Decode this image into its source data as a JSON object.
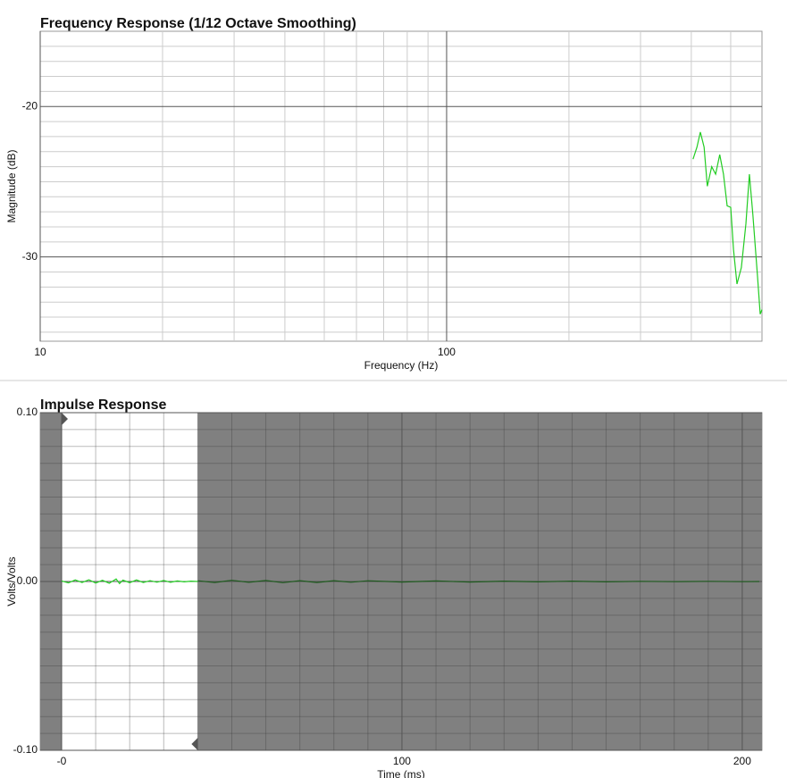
{
  "chart_data": [
    {
      "type": "line",
      "title": "Frequency Response (1/12 Octave Smoothing)",
      "x_label": "Frequency (Hz)",
      "y_label": "Magnitude (dB)",
      "x_scale": "log",
      "xlim": [
        10,
        597
      ],
      "ylim": [
        -35.6,
        -15
      ],
      "xticks": [
        10,
        100
      ],
      "minor_xticks": [
        20,
        30,
        40,
        50,
        60,
        70,
        80,
        90,
        200,
        300,
        400,
        500
      ],
      "yticks": [
        -20,
        -30
      ],
      "minor_yticks": [
        -16,
        -17,
        -18,
        -19,
        -21,
        -22,
        -23,
        -24,
        -25,
        -26,
        -27,
        -28,
        -29,
        -31,
        -32,
        -33,
        -34,
        -35
      ],
      "grid": true,
      "series": [
        {
          "color": "#22cc22",
          "x": [
            404,
            413,
            421,
            430,
            438,
            449,
            459,
            470,
            480,
            490,
            500,
            508,
            518,
            531,
            545,
            556,
            567,
            582,
            591,
            597
          ],
          "values": [
            -23.5,
            -22.7,
            -21.7,
            -22.7,
            -25.3,
            -24.0,
            -24.5,
            -23.2,
            -24.5,
            -26.6,
            -26.7,
            -29.5,
            -31.8,
            -30.7,
            -27.8,
            -24.5,
            -27.2,
            -31.3,
            -33.8,
            -33.5
          ]
        }
      ]
    },
    {
      "type": "line",
      "title": "Impulse Response",
      "x_label": "Time (ms)",
      "y_label": "Volts/Volts",
      "xlim": [
        -6.3,
        205.8
      ],
      "ylim": [
        -0.1,
        0.1
      ],
      "xticks": [
        {
          "value": 0,
          "label": "-0"
        },
        100,
        200
      ],
      "minor_xticks": [
        10,
        20,
        30,
        40,
        50,
        60,
        70,
        80,
        90,
        110,
        120,
        130,
        140,
        150,
        160,
        170,
        180,
        190
      ],
      "yticks": [
        {
          "value": 0.1,
          "label": "0.10"
        },
        {
          "value": 0,
          "label": "0.00"
        },
        {
          "value": -0.1,
          "label": "-0.10"
        }
      ],
      "minor_yticks": [
        0.09,
        0.08,
        0.07,
        0.06,
        0.05,
        0.04,
        0.03,
        0.02,
        0.01,
        -0.01,
        -0.02,
        -0.03,
        -0.04,
        -0.05,
        -0.06,
        -0.07,
        -0.08,
        -0.09
      ],
      "grid": true,
      "window_start": 0,
      "window_end": 40,
      "outside_window_color": "#808080",
      "series": [
        {
          "color": "#22cc22",
          "x": [
            0,
            2,
            4,
            6,
            8,
            10,
            12,
            14,
            16,
            17,
            18,
            20,
            22,
            24,
            26,
            28,
            30,
            32,
            34,
            36,
            38,
            40
          ],
          "values": [
            0.0003,
            -0.0008,
            0.0009,
            -0.0006,
            0.001,
            -0.0009,
            0.0007,
            -0.001,
            0.0015,
            -0.0012,
            0.0008,
            -0.0007,
            0.0009,
            -0.0006,
            0.0005,
            -0.0004,
            0.0006,
            -0.0005,
            0.0003,
            -0.0002,
            0.0002,
            0.0
          ]
        },
        {
          "color": "#1e5a1e",
          "x": [
            40,
            45,
            50,
            55,
            60,
            65,
            70,
            75,
            80,
            85,
            90,
            100,
            110,
            120,
            130,
            140,
            150,
            160,
            170,
            180,
            190,
            200,
            205
          ],
          "values": [
            0.0004,
            -0.0006,
            0.0007,
            -0.0005,
            0.0006,
            -0.0007,
            0.0005,
            -0.0006,
            0.0005,
            -0.0004,
            0.0004,
            -0.0003,
            0.0003,
            -0.0003,
            0.0002,
            -0.0002,
            0.0002,
            -0.0002,
            0.0001,
            -0.0001,
            0.0001,
            -0.0001,
            0.0
          ]
        }
      ]
    }
  ]
}
